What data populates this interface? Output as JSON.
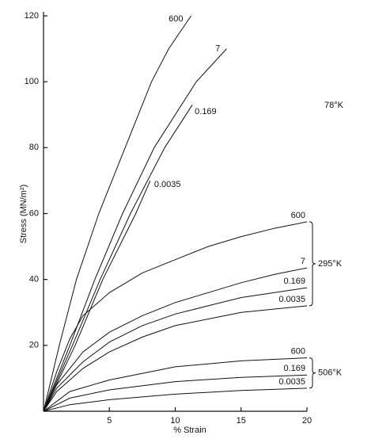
{
  "chart_data": {
    "type": "line",
    "x_label": "% Strain",
    "y_label": "Stress (MN/m²)",
    "xlim": [
      0,
      20
    ],
    "ylim": [
      0,
      120
    ],
    "xticks": [
      5,
      10,
      15,
      20
    ],
    "yticks": [
      20,
      40,
      60,
      80,
      100,
      120
    ],
    "color": "#111111",
    "groups": [
      {
        "label": "78°K",
        "series": [
          {
            "name": "600",
            "x": [
              0,
              1.2,
              2.5,
              4.2,
              6.2,
              8.2,
              9.5,
              11.2
            ],
            "values": [
              0,
              20,
              40,
              60,
              80,
              100,
              110,
              120
            ]
          },
          {
            "name": "7",
            "x": [
              0,
              2,
              3.9,
              6,
              8.4,
              11.6,
              13.9
            ],
            "values": [
              0,
              20,
              40,
              60,
              80,
              100,
              110
            ]
          },
          {
            "name": "0.169",
            "x": [
              0,
              2.2,
              4.3,
              6.6,
              9.2,
              11.3
            ],
            "values": [
              0,
              20,
              40,
              60,
              80,
              93
            ]
          },
          {
            "name": "0.0035",
            "x": [
              0,
              2.4,
              4.5,
              7,
              8.1
            ],
            "values": [
              0,
              20,
              40,
              60,
              70
            ]
          }
        ]
      },
      {
        "label": "295°K",
        "series": [
          {
            "name": "600",
            "x": [
              0,
              1,
              2,
              3,
              5,
              7.5,
              10,
              12.5,
              15,
              17.5,
              20
            ],
            "values": [
              0,
              12,
              22,
              29,
              36,
              42,
              46,
              50,
              53,
              55.5,
              57.5
            ]
          },
          {
            "name": "7",
            "x": [
              0,
              1,
              3,
              5,
              7.5,
              10,
              12.5,
              15,
              17.5,
              20
            ],
            "values": [
              0,
              8,
              18,
              24,
              29,
              33,
              36,
              39,
              41.5,
              43.5
            ]
          },
          {
            "name": "0.169",
            "x": [
              0,
              1,
              3,
              5,
              7.5,
              10,
              12.5,
              15,
              20
            ],
            "values": [
              0,
              7,
              15,
              21,
              26,
              29.5,
              32,
              34.5,
              37.5
            ]
          },
          {
            "name": "0.0035",
            "x": [
              0,
              1,
              3,
              5,
              7.5,
              10,
              12.5,
              15,
              20
            ],
            "values": [
              0,
              6,
              13,
              18,
              22.5,
              26,
              28,
              30,
              32
            ]
          }
        ]
      },
      {
        "label": "506°K",
        "series": [
          {
            "name": "600",
            "x": [
              0,
              2,
              5,
              10,
              15,
              20
            ],
            "values": [
              0,
              6,
              9.5,
              13.5,
              15.3,
              16.2
            ]
          },
          {
            "name": "0.169",
            "x": [
              0,
              2,
              5,
              10,
              15,
              20
            ],
            "values": [
              0,
              4,
              6.5,
              9,
              10.3,
              11
            ]
          },
          {
            "name": "0.0035",
            "x": [
              0,
              2,
              5,
              10,
              15,
              20
            ],
            "values": [
              0,
              2,
              3.5,
              5.2,
              6.3,
              7
            ]
          }
        ]
      }
    ]
  }
}
